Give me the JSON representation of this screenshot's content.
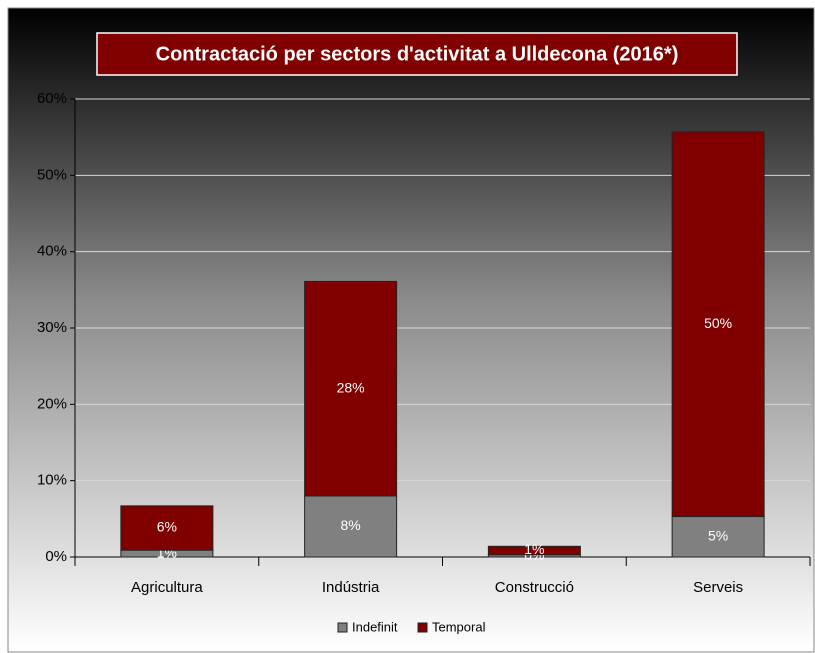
{
  "chart_data": {
    "type": "stacked_bar",
    "title": "Contractació per sectors d'activitat a Ulldecona (2016*)",
    "categories": [
      "Agricultura",
      "Indústria",
      "Construcció",
      "Serveis"
    ],
    "series": [
      {
        "name": "Indefinit",
        "color": "#808080",
        "values": [
          0.9,
          8.0,
          0.3,
          5.3
        ],
        "value_labels": [
          "1%",
          "8%",
          "0%",
          "5%"
        ]
      },
      {
        "name": "Temporal",
        "color": "#800000",
        "values": [
          5.8,
          28.1,
          1.1,
          50.4
        ],
        "value_labels": [
          "6%",
          "28%",
          "1%",
          "50%"
        ]
      }
    ],
    "ylim": [
      0,
      60
    ],
    "yticks": [
      {
        "value": 0,
        "label": "0%"
      },
      {
        "value": 10,
        "label": "10%"
      },
      {
        "value": 20,
        "label": "20%"
      },
      {
        "value": 30,
        "label": "30%"
      },
      {
        "value": 40,
        "label": "40%"
      },
      {
        "value": 50,
        "label": "50%"
      },
      {
        "value": 60,
        "label": "60%"
      }
    ],
    "grid": true,
    "legend": "bottom"
  }
}
